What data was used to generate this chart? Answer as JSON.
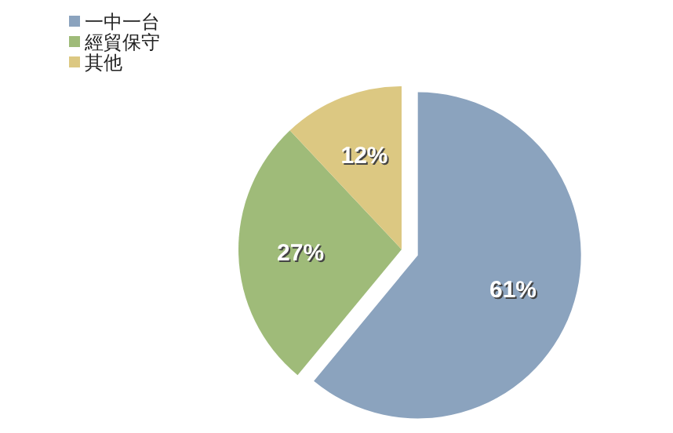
{
  "chart_data": {
    "type": "pie",
    "categories": [
      "一中一台",
      "經貿保守",
      "其他"
    ],
    "values": [
      61,
      27,
      12
    ],
    "value_labels": [
      "61%",
      "27%",
      "12%"
    ],
    "colors": [
      "#8ba3be",
      "#9fbb79",
      "#dcc882"
    ],
    "legend": "top left"
  }
}
